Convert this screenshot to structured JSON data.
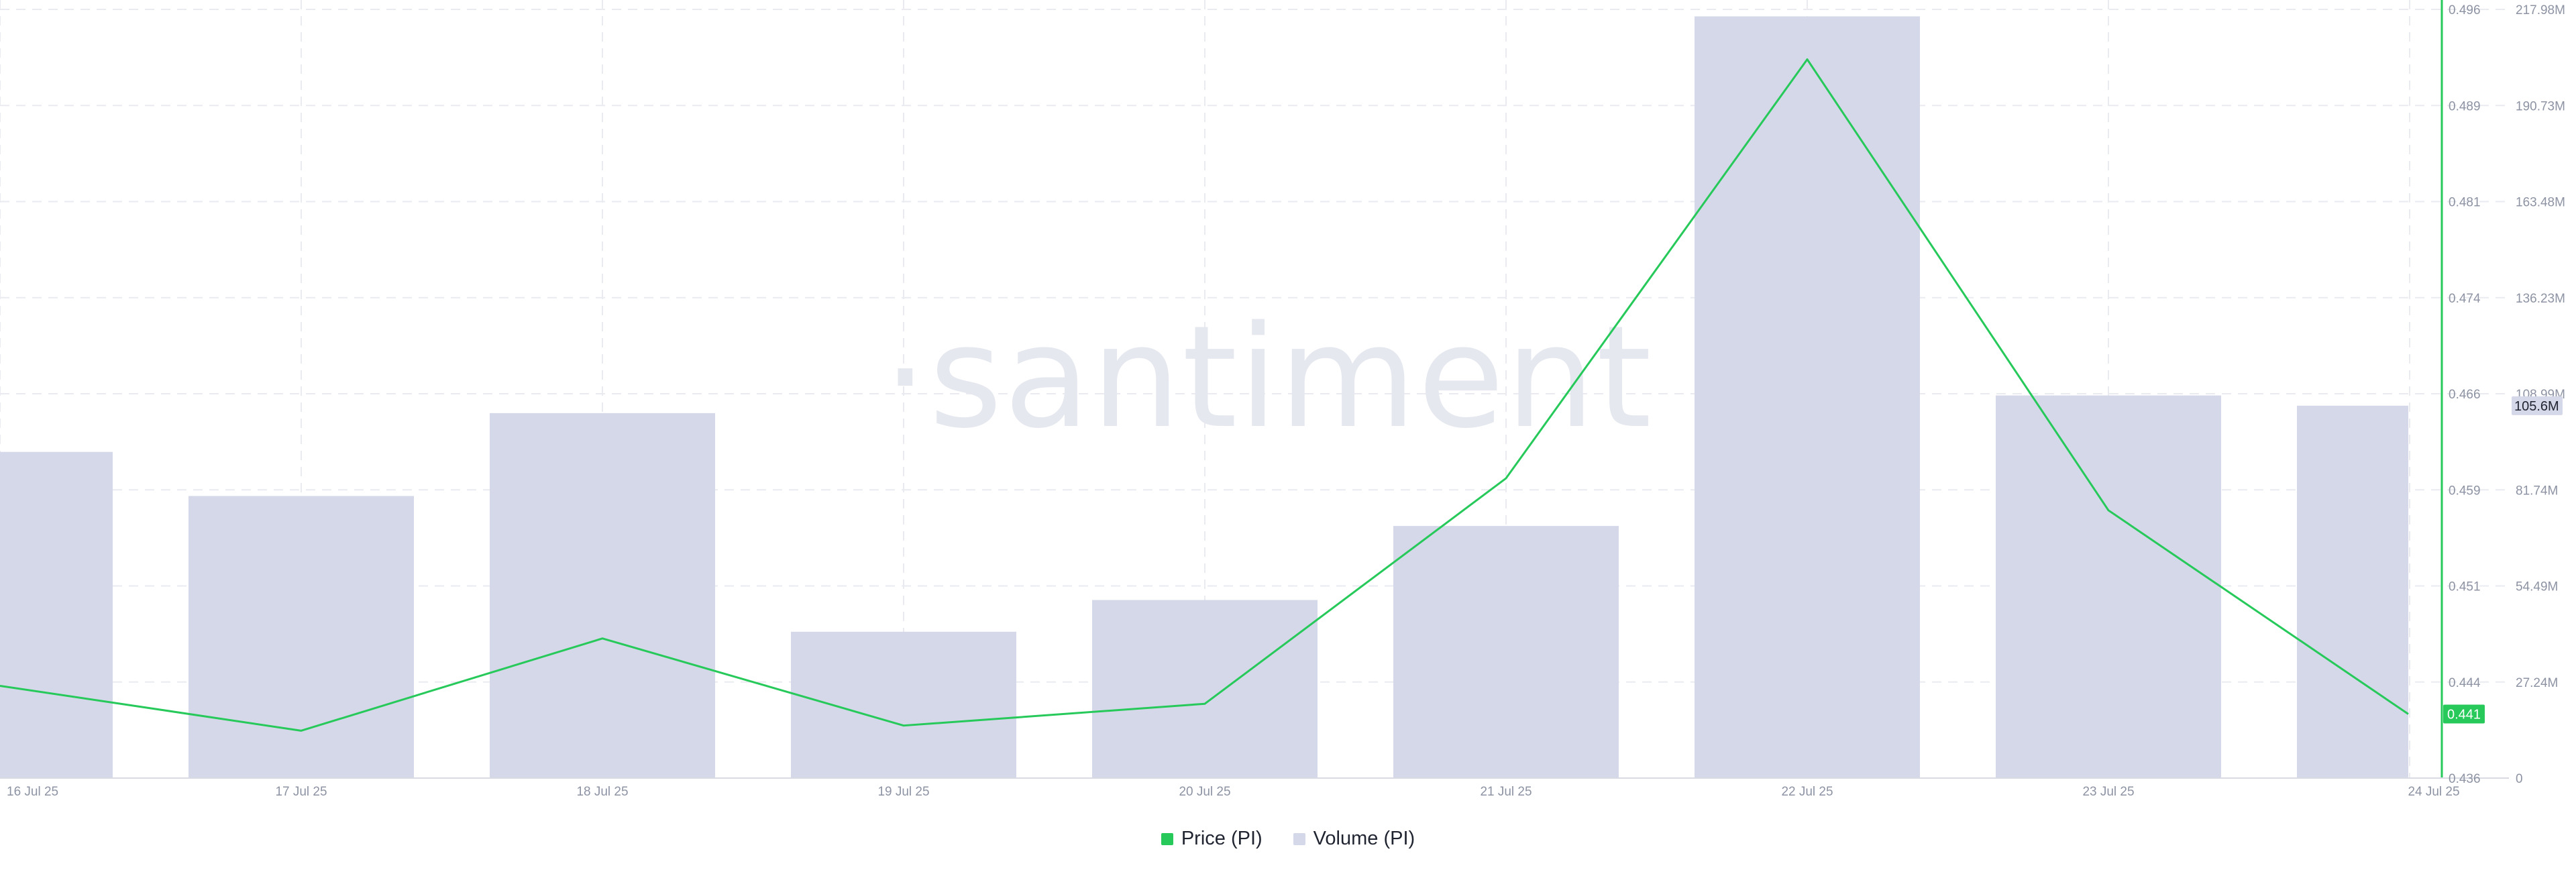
{
  "watermark": "·santiment",
  "colors": {
    "price_line": "#26c95a",
    "volume_bar": "#d5d8e8",
    "price_badge_bg": "#26c95a",
    "volume_badge_bg": "#d5d8e8",
    "grid": "#e9ebf0",
    "tick_text": "#8d93a3"
  },
  "legend": {
    "price_label": "Price (PI)",
    "volume_label": "Volume (PI)"
  },
  "chart_data": {
    "type": "bar",
    "title": "",
    "x_labels": [
      "16 Jul 25",
      "17 Jul 25",
      "18 Jul 25",
      "19 Jul 25",
      "20 Jul 25",
      "21 Jul 25",
      "22 Jul 25",
      "23 Jul 25",
      "24 Jul 25"
    ],
    "series": [
      {
        "name": "Volume (PI)",
        "type": "bar",
        "axis": "right",
        "values": [
          92.5,
          80.0,
          103.5,
          41.5,
          50.5,
          71.5,
          216.0,
          108.5,
          105.6
        ]
      },
      {
        "name": "Price (PI)",
        "type": "line",
        "axis": "left",
        "values": [
          0.4432,
          0.4397,
          0.4469,
          0.4401,
          0.4418,
          0.4594,
          0.4921,
          0.4569,
          0.441
        ]
      }
    ],
    "price_axis": {
      "ticks": [
        "0.436",
        "0.444",
        "0.451",
        "0.459",
        "0.466",
        "0.474",
        "0.481",
        "0.489",
        "0.496"
      ],
      "min": 0.436,
      "max": 0.496
    },
    "volume_axis": {
      "ticks": [
        "0",
        "27.24M",
        "54.49M",
        "81.74M",
        "108.99M",
        "136.23M",
        "163.48M",
        "190.73M",
        "217.98M"
      ],
      "min": 0,
      "max": 217.98
    },
    "current_price_label": "0.441",
    "current_volume_label": "105.6M",
    "grid": true,
    "legend_position": "bottom-center"
  }
}
